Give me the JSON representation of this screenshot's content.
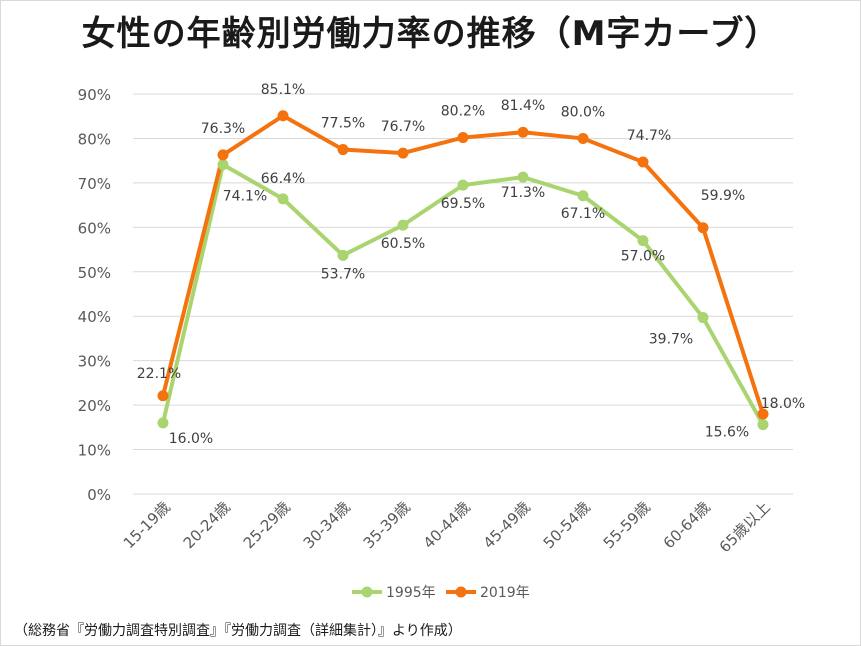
{
  "title": "女性の年齢別労働力率の推移（M字カーブ）",
  "source": "（総務省『労働力調査特別調査』『労働力調査（詳細集計）』より作成）",
  "colors": {
    "s1995": "#a9d46f",
    "s2019": "#f4730e",
    "grid": "#d9d9d9",
    "text": "#595959",
    "label": "#404040"
  },
  "chart_data": {
    "type": "line",
    "categories": [
      "15-19歳",
      "20-24歳",
      "25-29歳",
      "30-34歳",
      "35-39歳",
      "40-44歳",
      "45-49歳",
      "50-54歳",
      "55-59歳",
      "60-64歳",
      "65歳以上"
    ],
    "ylim": [
      0,
      90
    ],
    "yticks": [
      "0%",
      "10%",
      "20%",
      "30%",
      "40%",
      "50%",
      "60%",
      "70%",
      "80%",
      "90%"
    ],
    "grid": true,
    "legend": "bottom",
    "series": [
      {
        "name": "1995年",
        "values": [
          16.0,
          74.1,
          66.4,
          53.7,
          60.5,
          69.5,
          71.3,
          67.1,
          57.0,
          39.7,
          15.6
        ],
        "labels": [
          "16.0%",
          "74.1%",
          "66.4%",
          "53.7%",
          "60.5%",
          "69.5%",
          "71.3%",
          "67.1%",
          "57.0%",
          "39.7%",
          "15.6%"
        ]
      },
      {
        "name": "2019年",
        "values": [
          22.1,
          76.3,
          85.1,
          77.5,
          76.7,
          80.2,
          81.4,
          80.0,
          74.7,
          59.9,
          18.0
        ],
        "labels": [
          "22.1%",
          "76.3%",
          "85.1%",
          "77.5%",
          "76.7%",
          "80.2%",
          "81.4%",
          "80.0%",
          "74.7%",
          "59.9%",
          "18.0%"
        ]
      }
    ]
  }
}
